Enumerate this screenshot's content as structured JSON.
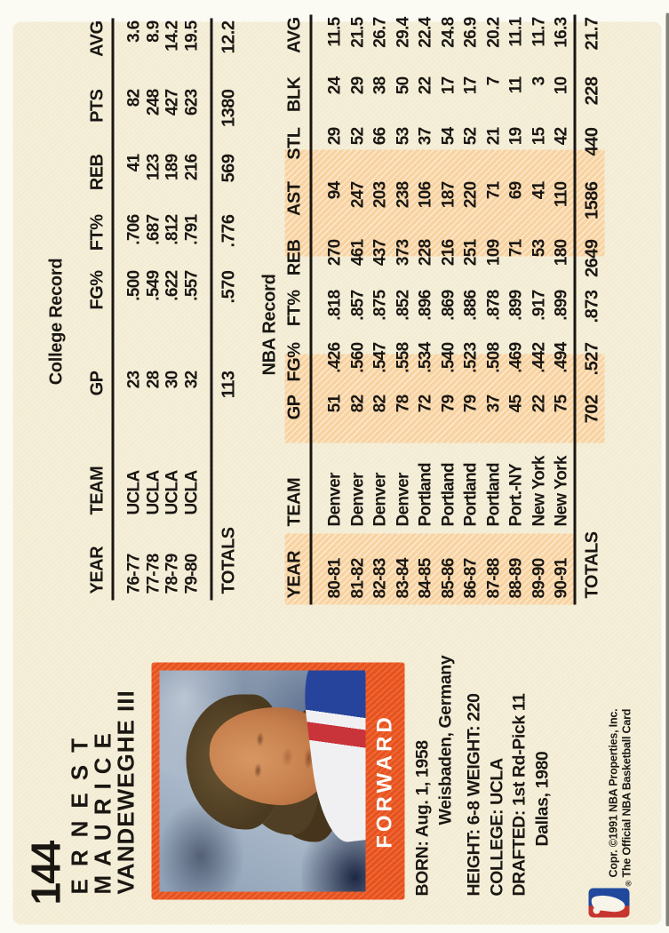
{
  "colors": {
    "card_background": "#f5efd9",
    "highlight_peach": "#f8d3a2",
    "frame_orange": "#e8521d",
    "ink": "#1a1713",
    "logo_red": "#c8342e",
    "logo_blue": "#20489c"
  },
  "card_number": "144",
  "player": {
    "name_line1": "ERNEST",
    "name_line2": "MAURICE",
    "name_line3": "VANDEWEGHE III",
    "position": "FORWARD",
    "bio_lines": [
      "BORN: Aug. 1, 1958",
      "Weisbaden, Germany",
      "HEIGHT: 6-8 WEIGHT: 220",
      "COLLEGE: UCLA",
      "DRAFTED: 1st Rd-Pick 11",
      "Dallas, 1980"
    ]
  },
  "college_record": {
    "title": "College Record",
    "headers": [
      "YEAR",
      "TEAM",
      "GP",
      "FG%",
      "FT%",
      "REB",
      "PTS",
      "AVG"
    ],
    "rows": [
      [
        "76-77",
        "UCLA",
        "23",
        ".500",
        ".706",
        "41",
        "82",
        "3.6"
      ],
      [
        "77-78",
        "UCLA",
        "28",
        ".549",
        ".687",
        "123",
        "248",
        "8.9"
      ],
      [
        "78-79",
        "UCLA",
        "30",
        ".622",
        ".812",
        "189",
        "427",
        "14.2"
      ],
      [
        "79-80",
        "UCLA",
        "32",
        ".557",
        ".791",
        "216",
        "623",
        "19.5"
      ]
    ],
    "totals_label": "TOTALS",
    "totals": [
      "113",
      ".570",
      ".776",
      "569",
      "1380",
      "12.2"
    ]
  },
  "nba_record": {
    "title": "NBA Record",
    "headers": [
      "YEAR",
      "TEAM",
      "GP",
      "FG%",
      "FT%",
      "REB",
      "AST",
      "STL",
      "BLK",
      "AVG"
    ],
    "rows": [
      [
        "80-81",
        "Denver",
        "51",
        ".426",
        ".818",
        "270",
        "94",
        "29",
        "24",
        "11.5"
      ],
      [
        "81-82",
        "Denver",
        "82",
        ".560",
        ".857",
        "461",
        "247",
        "52",
        "29",
        "21.5"
      ],
      [
        "82-83",
        "Denver",
        "82",
        ".547",
        ".875",
        "437",
        "203",
        "66",
        "38",
        "26.7"
      ],
      [
        "83-84",
        "Denver",
        "78",
        ".558",
        ".852",
        "373",
        "238",
        "53",
        "50",
        "29.4"
      ],
      [
        "84-85",
        "Portland",
        "72",
        ".534",
        ".896",
        "228",
        "106",
        "37",
        "22",
        "22.4"
      ],
      [
        "85-86",
        "Portland",
        "79",
        ".540",
        ".869",
        "216",
        "187",
        "54",
        "17",
        "24.8"
      ],
      [
        "86-87",
        "Portland",
        "79",
        ".523",
        ".886",
        "251",
        "220",
        "52",
        "17",
        "26.9"
      ],
      [
        "87-88",
        "Portland",
        "37",
        ".508",
        ".878",
        "109",
        "71",
        "21",
        "7",
        "20.2"
      ],
      [
        "88-89",
        "Port.-NY",
        "45",
        ".469",
        ".899",
        "71",
        "69",
        "19",
        "11",
        "11.1"
      ],
      [
        "89-90",
        "New York",
        "22",
        ".442",
        ".917",
        "53",
        "41",
        "15",
        "3",
        "11.7"
      ],
      [
        "90-91",
        "New York",
        "75",
        ".494",
        ".899",
        "180",
        "110",
        "42",
        "10",
        "16.3"
      ]
    ],
    "totals_label": "TOTALS",
    "totals": [
      "702",
      ".527",
      ".873",
      "2649",
      "1586",
      "440",
      "228",
      "21.7"
    ]
  },
  "footer": {
    "copyright_line1": "Copr. ©1991 NBA Properties, Inc.",
    "copyright_line2": "The Official NBA Basketball Card",
    "registered_mark": "®"
  }
}
